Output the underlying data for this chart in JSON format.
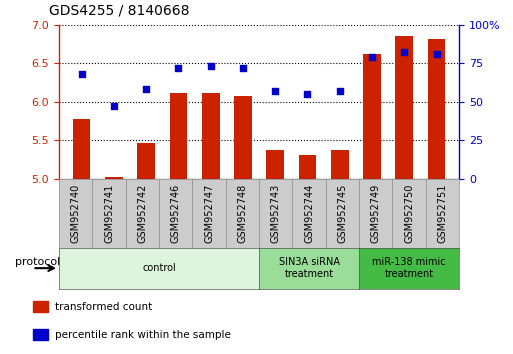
{
  "title": "GDS4255 / 8140668",
  "samples": [
    "GSM952740",
    "GSM952741",
    "GSM952742",
    "GSM952746",
    "GSM952747",
    "GSM952748",
    "GSM952743",
    "GSM952744",
    "GSM952745",
    "GSM952749",
    "GSM952750",
    "GSM952751"
  ],
  "transformed_count": [
    5.78,
    5.02,
    5.47,
    6.12,
    6.12,
    6.08,
    5.38,
    5.31,
    5.38,
    6.62,
    6.85,
    6.82
  ],
  "percentile_rank": [
    68,
    47,
    58,
    72,
    73,
    72,
    57,
    55,
    57,
    79,
    82,
    81
  ],
  "ylim_left": [
    5.0,
    7.0
  ],
  "ylim_right": [
    0,
    100
  ],
  "yticks_left": [
    5.0,
    5.5,
    6.0,
    6.5,
    7.0
  ],
  "yticks_right": [
    0,
    25,
    50,
    75,
    100
  ],
  "bar_color": "#cc2200",
  "dot_color": "#0000cc",
  "protocol_groups": [
    {
      "label": "control",
      "start": 0,
      "end": 5,
      "color": "#ddf5dd",
      "border_color": "#aaddaa"
    },
    {
      "label": "SIN3A siRNA\ntreatment",
      "start": 6,
      "end": 8,
      "color": "#99dd99",
      "border_color": "#55bb55"
    },
    {
      "label": "miR-138 mimic\ntreatment",
      "start": 9,
      "end": 11,
      "color": "#44bb44",
      "border_color": "#228822"
    }
  ],
  "legend_items": [
    {
      "label": "transformed count",
      "color": "#cc2200"
    },
    {
      "label": "percentile rank within the sample",
      "color": "#0000cc"
    }
  ],
  "protocol_label": "protocol",
  "bar_width": 0.55,
  "sample_fontsize": 7,
  "title_fontsize": 10,
  "tick_fontsize": 8,
  "legend_fontsize": 7.5
}
